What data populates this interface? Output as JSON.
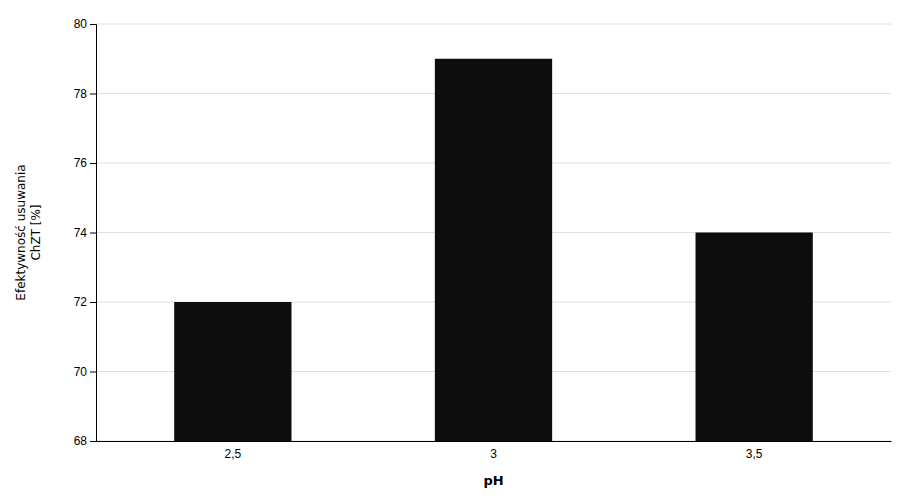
{
  "chart_data": {
    "type": "bar",
    "categories": [
      "2,5",
      "3",
      "3,5"
    ],
    "values": [
      72.0,
      79.0,
      74.0
    ],
    "color": "#0d0d0d",
    "xlabel": "pH",
    "ylabel": "Efektywność usuwania\nChZT [%]",
    "ylim": [
      68,
      80
    ],
    "yticks": [
      68,
      70,
      72,
      74,
      76,
      78,
      80
    ],
    "grid": true
  }
}
